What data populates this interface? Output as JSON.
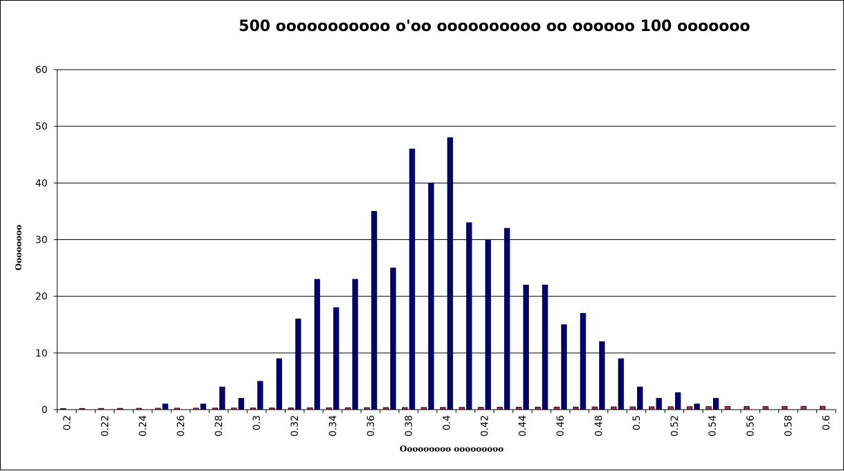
{
  "chart_data": {
    "type": "bar",
    "title": "500 ooooooooooo o'oo oooooooooo oo oooooo 100 ooooooo",
    "xlabel": "Ooooooooo ooooooooo",
    "ylabel": "Oooooooo",
    "ylim": [
      0,
      60
    ],
    "yticks": [
      0,
      10,
      20,
      30,
      40,
      50,
      60
    ],
    "grid": true,
    "legend": "none",
    "categories": [
      "0.2",
      "0.21",
      "0.22",
      "0.23",
      "0.24",
      "0.25",
      "0.26",
      "0.27",
      "0.28",
      "0.29",
      "0.3",
      "0.31",
      "0.32",
      "0.33",
      "0.34",
      "0.35",
      "0.36",
      "0.37",
      "0.38",
      "0.39",
      "0.4",
      "0.41",
      "0.42",
      "0.43",
      "0.44",
      "0.45",
      "0.46",
      "0.47",
      "0.48",
      "0.49",
      "0.5",
      "0.51",
      "0.52",
      "0.53",
      "0.54",
      "0.55",
      "0.56",
      "0.57",
      "0.58",
      "0.59",
      "0.6"
    ],
    "category_tick_labels": [
      "0.2",
      "",
      "0.22",
      "",
      "0.24",
      "",
      "0.26",
      "",
      "0.28",
      "",
      "0.3",
      "",
      "0.32",
      "",
      "0.34",
      "",
      "0.36",
      "",
      "0.38",
      "",
      "0.4",
      "",
      "0.42",
      "",
      "0.44",
      "",
      "0.46",
      "",
      "0.48",
      "",
      "0.5",
      "",
      "0.52",
      "",
      "0.54",
      "",
      "0.56",
      "",
      "0.58",
      "",
      "0.6"
    ],
    "series": [
      {
        "color": "#993366",
        "values": [
          0.2,
          0.21,
          0.22,
          0.23,
          0.24,
          0.25,
          0.26,
          0.27,
          0.28,
          0.29,
          0.3,
          0.31,
          0.32,
          0.33,
          0.34,
          0.35,
          0.36,
          0.37,
          0.38,
          0.39,
          0.4,
          0.41,
          0.42,
          0.43,
          0.44,
          0.45,
          0.46,
          0.47,
          0.48,
          0.49,
          0.5,
          0.51,
          0.52,
          0.53,
          0.54,
          0.55,
          0.56,
          0.57,
          0.58,
          0.59,
          0.6
        ]
      },
      {
        "color": "#000080",
        "values": [
          0,
          0,
          0,
          0,
          0,
          1,
          0,
          1,
          4,
          2,
          5,
          9,
          16,
          23,
          18,
          23,
          35,
          25,
          46,
          40,
          48,
          33,
          30,
          32,
          22,
          22,
          15,
          17,
          12,
          9,
          4,
          2,
          3,
          1,
          2,
          0,
          0,
          0,
          0,
          0,
          0
        ]
      }
    ]
  }
}
